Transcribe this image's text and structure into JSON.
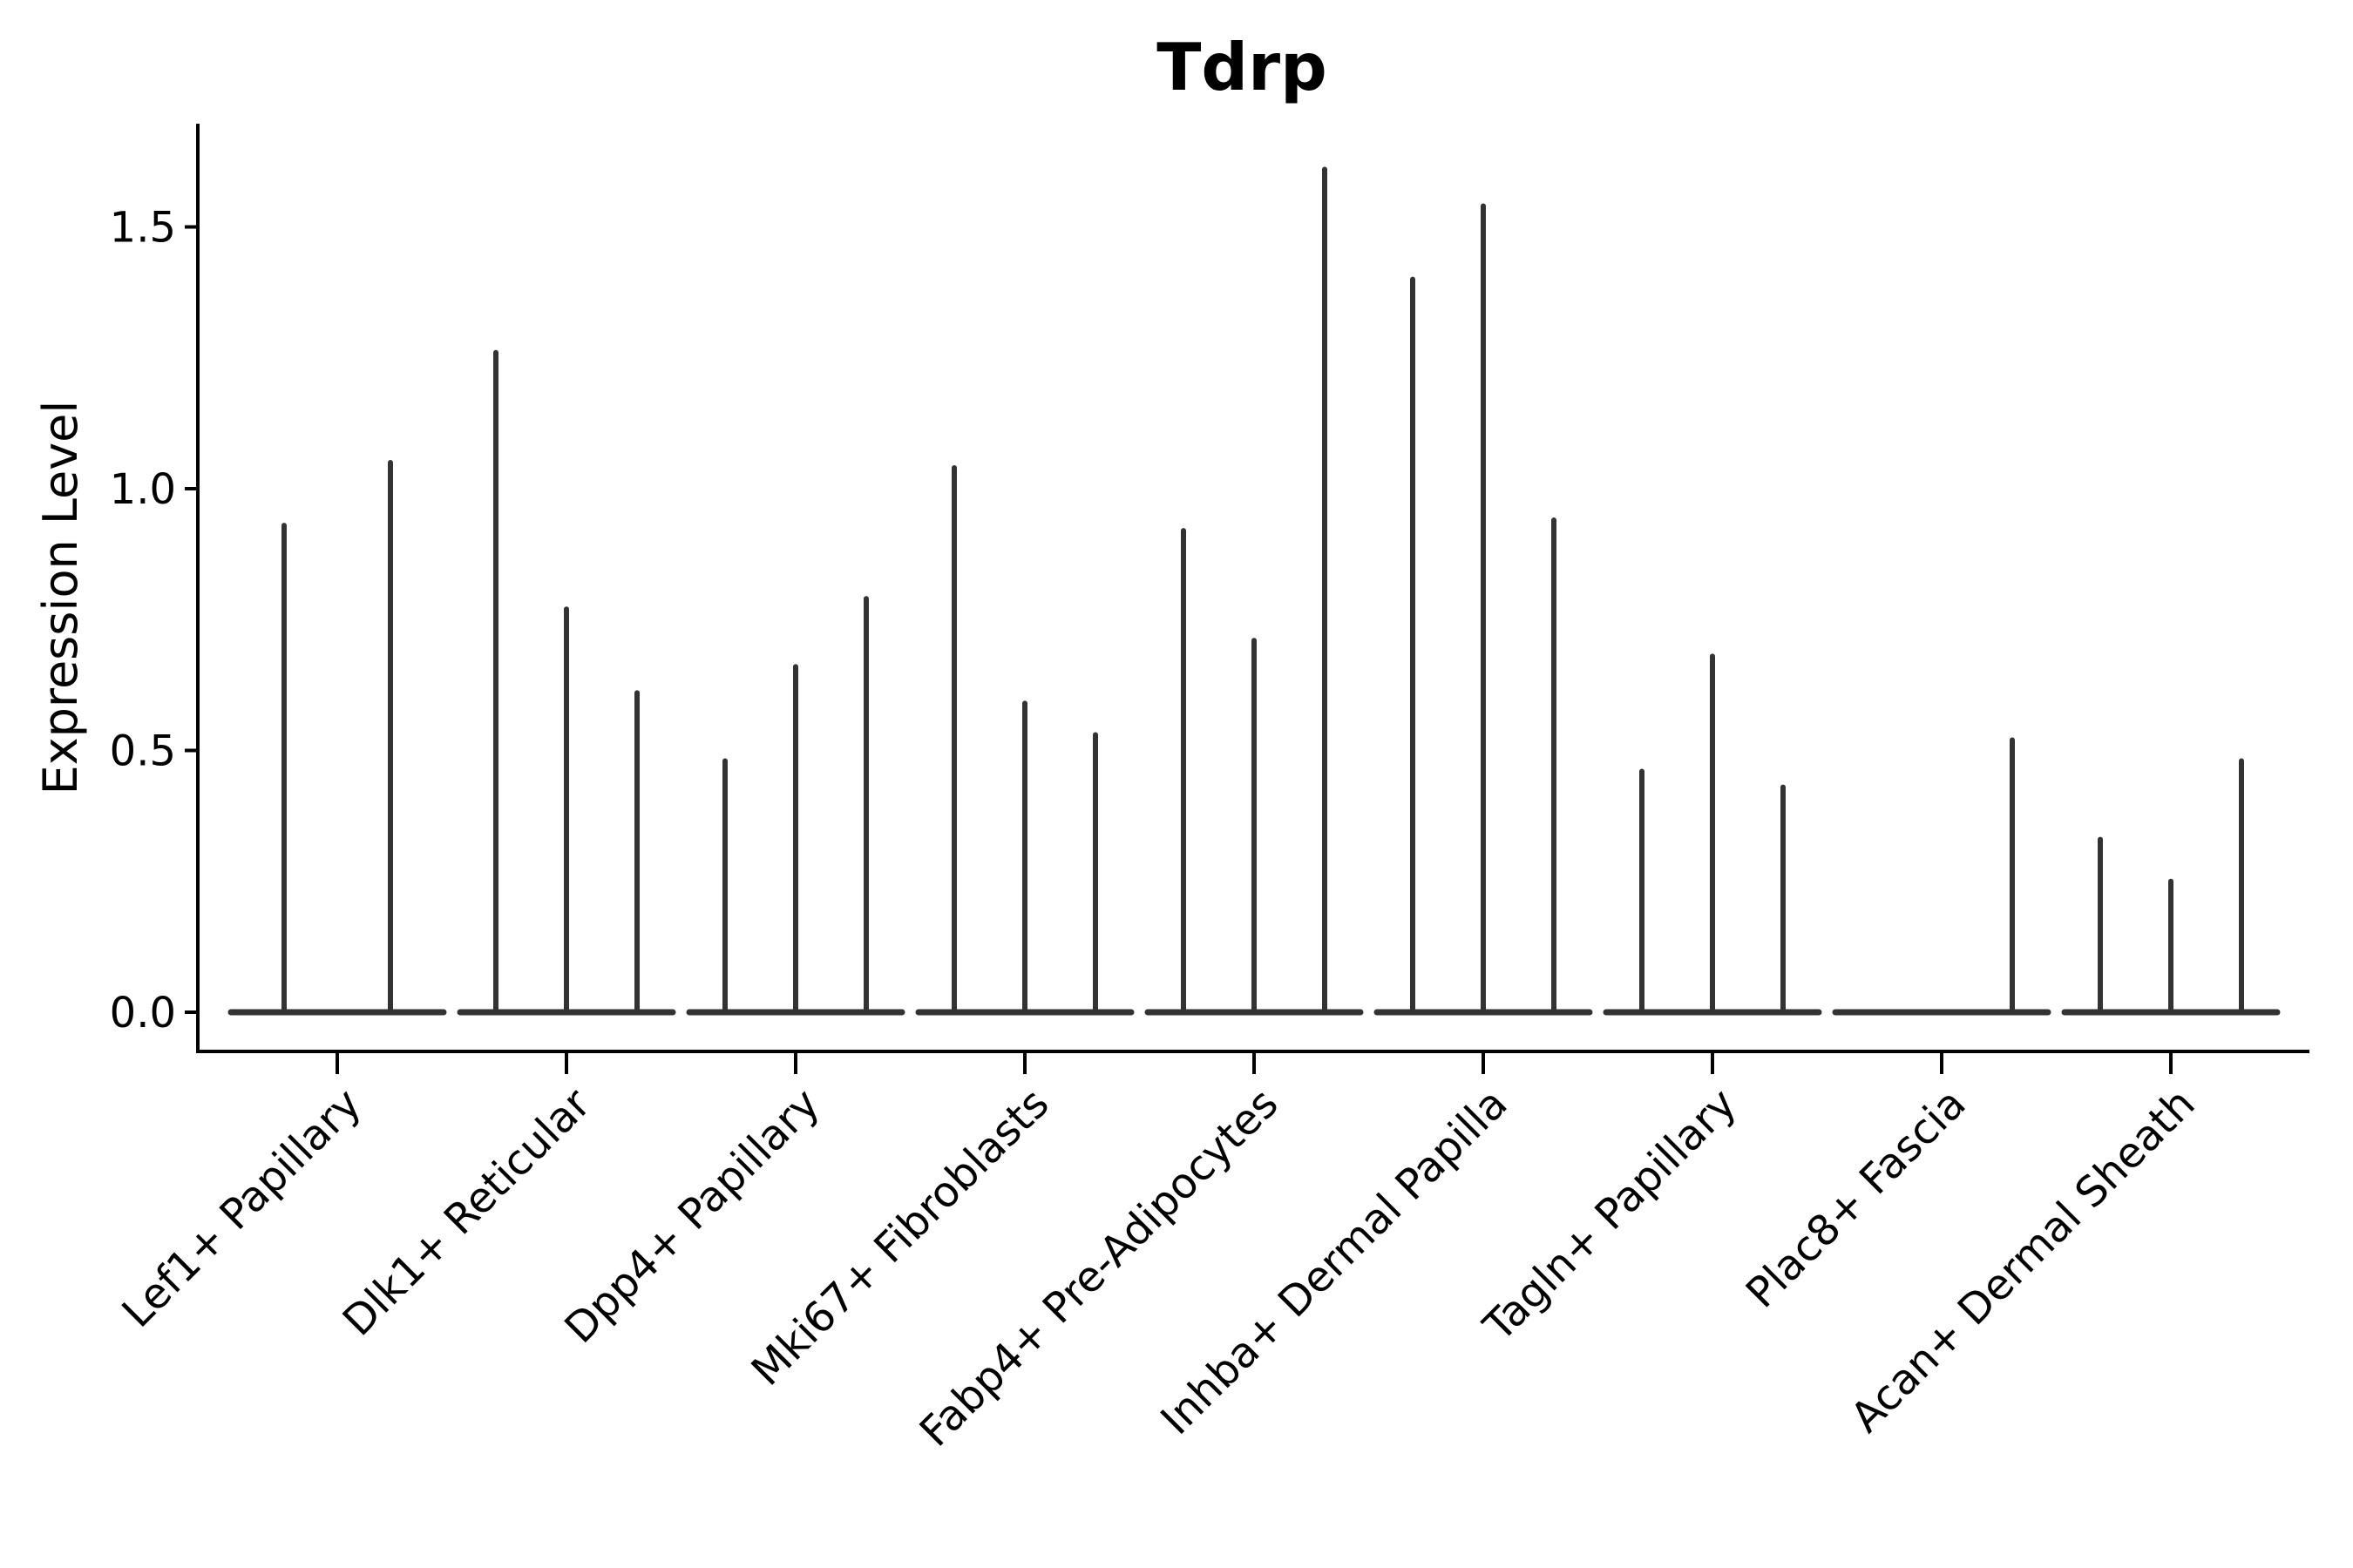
{
  "chart_data": {
    "type": "violin",
    "title": "Tdrp",
    "ylabel": "Expression Level",
    "xlabel": "",
    "ytick_labels": [
      "0.0",
      "0.5",
      "1.0",
      "1.5"
    ],
    "ytick_values": [
      0.0,
      0.5,
      1.0,
      1.5
    ],
    "ylim": [
      -0.08,
      1.69
    ],
    "grid": false,
    "legend": "none",
    "categories": [
      {
        "label": "Lef1+ Papillary",
        "violin_max": [
          0.93,
          1.05
        ]
      },
      {
        "label": "Dlk1+ Reticular",
        "violin_max": [
          1.26,
          0.77,
          0.61
        ]
      },
      {
        "label": "Dpp4+ Papillary",
        "violin_max": [
          0.48,
          0.66,
          0.79
        ]
      },
      {
        "label": "Mki67+ Fibroblasts",
        "violin_max": [
          1.04,
          0.59,
          0.53
        ]
      },
      {
        "label": "Fabp4+ Pre-Adipocytes",
        "violin_max": [
          0.92,
          0.71,
          1.61
        ]
      },
      {
        "label": "Inhba+ Dermal Papilla",
        "violin_max": [
          1.4,
          1.54,
          0.94
        ]
      },
      {
        "label": "Tagln+ Papillary",
        "violin_max": [
          0.46,
          0.68,
          0.43
        ]
      },
      {
        "label": "Plac8+ Fascia",
        "violin_max": [
          0,
          0,
          0.52
        ]
      },
      {
        "label": "Acan+ Dermal Sheath",
        "violin_max": [
          0.33,
          0.25,
          0.48
        ]
      }
    ],
    "colors": {
      "violin_stroke": "#333333",
      "axis": "#000000",
      "text": "#000000",
      "background": "#ffffff"
    }
  }
}
